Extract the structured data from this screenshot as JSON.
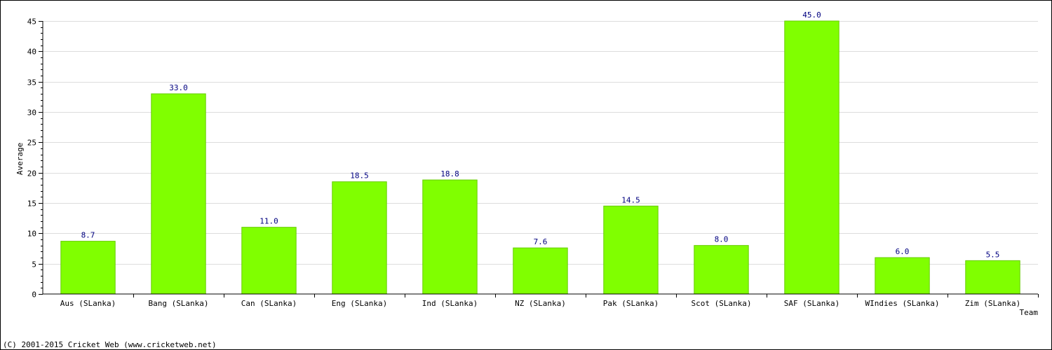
{
  "chart_data": {
    "type": "bar",
    "categories": [
      "Aus (SLanka)",
      "Bang (SLanka)",
      "Can (SLanka)",
      "Eng (SLanka)",
      "Ind (SLanka)",
      "NZ (SLanka)",
      "Pak (SLanka)",
      "Scot (SLanka)",
      "SAF (SLanka)",
      "WIndies (SLanka)",
      "Zim (SLanka)"
    ],
    "values": [
      8.7,
      33.0,
      11.0,
      18.5,
      18.8,
      7.6,
      14.5,
      8.0,
      45.0,
      6.0,
      5.5
    ],
    "value_labels": [
      "8.7",
      "33.0",
      "11.0",
      "18.5",
      "18.8",
      "7.6",
      "14.5",
      "8.0",
      "45.0",
      "6.0",
      "5.5"
    ],
    "xlabel": "Team",
    "ylabel": "Average",
    "ylim": [
      0,
      45
    ],
    "yticks": [
      0,
      5,
      10,
      15,
      20,
      25,
      30,
      35,
      40,
      45
    ],
    "grid": true,
    "colors": {
      "bar_fill": "#80ff00",
      "bar_edge": "#66cc00",
      "value_label": "#000080",
      "grid": "#dddddd",
      "axis": "#000000"
    }
  },
  "footer": {
    "copyright": "(C) 2001-2015 Cricket Web (www.cricketweb.net)"
  }
}
